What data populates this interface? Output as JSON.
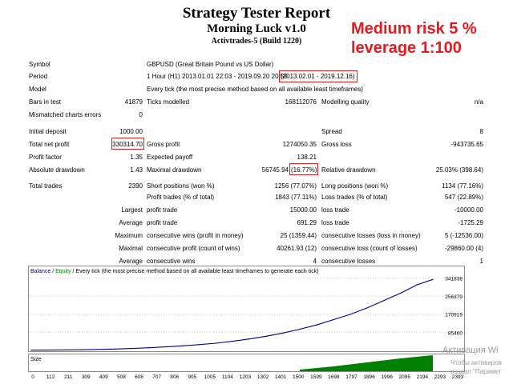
{
  "header": {
    "title": "Strategy Tester Report",
    "subtitle": "Morning Luck v1.0",
    "build": "Activtrades-5 (Build 1220)",
    "risk_line1": "Medium risk 5 %",
    "risk_line2": "leverage 1:100",
    "risk_color": "#e8181d"
  },
  "report": {
    "symbol_label": "Symbol",
    "symbol_value": "GBPUSD (Great Britain Pound vs US Dollar)",
    "period_label": "Period",
    "period_value": "1 Hour (H1) 2013.01.01 22:03 - 2019.09.20 20:59",
    "period_range": "(2013.02.01 - 2019.12.16)",
    "model_label": "Model",
    "model_value": "Every tick (the most precise method based on all available least timeframes)",
    "bars_label": "Bars in test",
    "bars_value": "41879",
    "ticks_label": "Ticks modelled",
    "ticks_value": "168112076",
    "quality_label": "Modelling quality",
    "quality_value": "n/a",
    "mismatch_label": "Mismatched charts errors",
    "mismatch_value": "0",
    "deposit_label": "Initial deposit",
    "deposit_value": "1000.00",
    "spread_label": "Spread",
    "spread_value": "8",
    "netprofit_label": "Total net profit",
    "netprofit_value": "330314.70",
    "grossprofit_label": "Gross profit",
    "grossprofit_value": "1274050.35",
    "grossloss_label": "Gross loss",
    "grossloss_value": "-943735.65",
    "pf_label": "Profit factor",
    "pf_value": "1.35",
    "payoff_label": "Expected payoff",
    "payoff_value": "138.21",
    "absdd_label": "Absolute drawdown",
    "absdd_value": "1.43",
    "maxdd_label": "Maximal drawdown",
    "maxdd_value": "56745.94",
    "maxdd_pct": "(16.77%)",
    "reldd_label": "Relative drawdown",
    "reldd_value": "25.03% (398.64)",
    "trades_label": "Total trades",
    "trades_value": "2390",
    "short_label": "Short positions (won %)",
    "short_value": "1256 (77.07%)",
    "long_label": "Long positions (won %)",
    "long_value": "1134 (77.16%)",
    "ptrades_label": "Profit trades (% of total)",
    "ptrades_value": "1843 (77.11%)",
    "ltrades_label": "Loss trades (% of total)",
    "ltrades_value": "547 (22.89%)",
    "largest_label": "Largest",
    "largest_pt_label": "profit trade",
    "largest_pt_value": "15000.00",
    "largest_lt_label": "loss trade",
    "largest_lt_value": "-10000.00",
    "average_label": "Average",
    "average_pt_label": "profit trade",
    "average_pt_value": "691.29",
    "average_lt_label": "loss trade",
    "average_lt_value": "-1725.29",
    "maximum_label": "Maximum",
    "maxwins_label": "consecutive wins (profit in money)",
    "maxwins_value": "25 (1359.44)",
    "maxlosses_label": "consecutive losses (loss in money)",
    "maxlosses_value": "5 (-12536.00)",
    "maximal_label": "Maximal",
    "maxprofit_label": "consecutive profit (count of wins)",
    "maxprofit_value": "40261.93 (12)",
    "maxloss_label": "consecutive loss (count of losses)",
    "maxloss_value": "-29860.00 (4)",
    "avgcons_label": "Average",
    "avgwins_label": "consecutive wins",
    "avgwins_value": "4",
    "avglosses_label": "consecutive losses",
    "avglosses_value": "1"
  },
  "chart_data": {
    "type": "line",
    "legend_balance": "Balance",
    "legend_sep": " / ",
    "legend_equity": "Equity",
    "legend_rest": " / Every tick (the most precise method based on all available least timeframes to generate each tick)",
    "balance_color": "#00008b",
    "equity_color": "#008000",
    "y_ticks": [
      "341838",
      "256379",
      "170919",
      "85460"
    ],
    "y_tick_values": [
      341838,
      256379,
      170919,
      85460
    ],
    "ylim": [
      0,
      370000
    ],
    "xlim": [
      0,
      2393
    ],
    "size_label": "Size",
    "x_ticks": [
      "0",
      "112",
      "211",
      "309",
      "409",
      "508",
      "608",
      "707",
      "806",
      "905",
      "1005",
      "1104",
      "1203",
      "1302",
      "1401",
      "1500",
      "1599",
      "1698",
      "1797",
      "1896",
      "1996",
      "2095",
      "2194",
      "2293",
      "2393"
    ],
    "series": [
      {
        "name": "Balance",
        "x": [
          0,
          100,
          200,
          300,
          400,
          500,
          600,
          700,
          800,
          900,
          1000,
          1100,
          1200,
          1300,
          1400,
          1500,
          1600,
          1700,
          1800,
          1900,
          2000,
          2100,
          2200,
          2300,
          2393
        ],
        "values": [
          1000,
          1500,
          2200,
          3200,
          4500,
          6500,
          9000,
          12500,
          16500,
          21500,
          27000,
          34000,
          43000,
          54000,
          67000,
          82000,
          100000,
          120000,
          145000,
          170000,
          200000,
          235000,
          270000,
          310000,
          335000
        ]
      }
    ],
    "size_series": {
      "x": [
        1600,
        1800,
        2000,
        2200,
        2393
      ],
      "values": [
        0.1,
        0.3,
        0.55,
        0.8,
        1.0
      ]
    }
  },
  "watermark": {
    "line1": "Активация Wi",
    "line2": "Чтобы активиров",
    "line3": "раздел \"Парамет"
  }
}
